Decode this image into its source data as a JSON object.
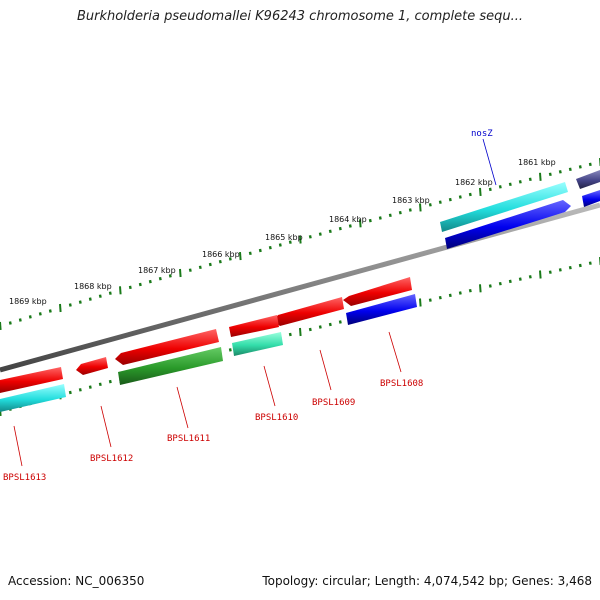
{
  "title": "Burkholderia pseudomallei K96243 chromosome 1, complete sequ...",
  "accession": {
    "label": "Accession:",
    "value": "NC_006350"
  },
  "summary": {
    "topology_label": "Topology:",
    "topology": "circular",
    "length_label": "Length:",
    "length": "4,074,542 bp",
    "genes_label": "Genes:",
    "genes": "3,468"
  },
  "scale_labels": [
    {
      "text": "1861 kbp",
      "kbp": 1861
    },
    {
      "text": "1862 kbp",
      "kbp": 1862
    },
    {
      "text": "1863 kbp",
      "kbp": 1863
    },
    {
      "text": "1864 kbp",
      "kbp": 1864
    },
    {
      "text": "1865 kbp",
      "kbp": 1865
    },
    {
      "text": "1866 kbp",
      "kbp": 1866
    },
    {
      "text": "1867 kbp",
      "kbp": 1867
    },
    {
      "text": "1868 kbp",
      "kbp": 1868
    },
    {
      "text": "1869 kbp",
      "kbp": 1869
    }
  ],
  "gene_labels": [
    {
      "text": "nosZ",
      "color": "#0000cc"
    },
    {
      "text": "BPSL1608",
      "color": "#cc0000"
    },
    {
      "text": "BPSL1609",
      "color": "#cc0000"
    },
    {
      "text": "BPSL1610",
      "color": "#cc0000"
    },
    {
      "text": "BPSL1611",
      "color": "#cc0000"
    },
    {
      "text": "BPSL1612",
      "color": "#cc0000"
    },
    {
      "text": "BPSL1613",
      "color": "#cc0000"
    }
  ],
  "colors": {
    "backbone": "#808080",
    "tick": "#1a7a1a",
    "feature_red": "#ee0000",
    "feature_cyan": "#33eeee",
    "feature_blue": "#0000ee",
    "feature_green": "#33aa33",
    "feature_teal": "#33ddaa",
    "feature_navy": "#444488"
  }
}
